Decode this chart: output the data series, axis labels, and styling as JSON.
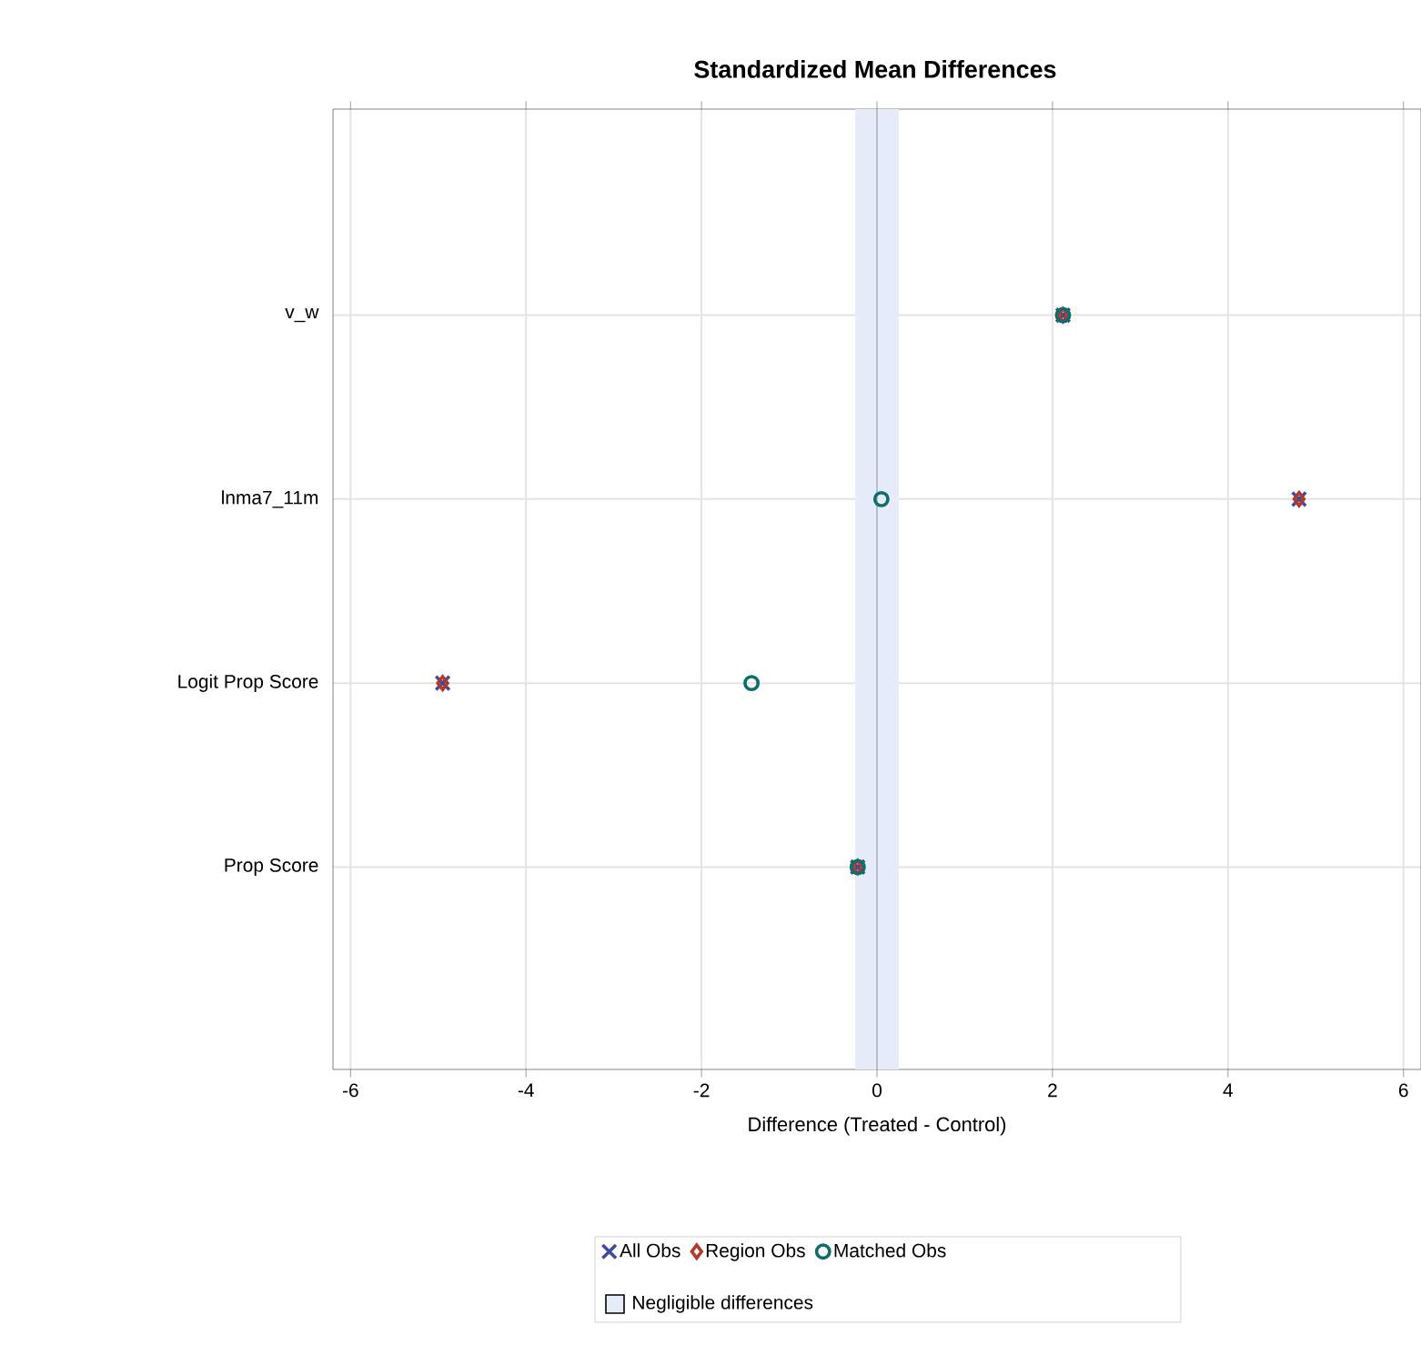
{
  "chart_data": {
    "type": "scatter",
    "orientation": "horizontal",
    "title": "Standardized Mean Differences",
    "xlabel": "Difference (Treated - Control)",
    "categories": [
      "v_w",
      "lnma7_11m",
      "Logit Prop Score",
      "Prop Score"
    ],
    "series": [
      {
        "name": "All Obs",
        "color": "#3f4c9c",
        "marker": "cross",
        "values": [
          2.12,
          4.81,
          -4.95,
          -0.22
        ]
      },
      {
        "name": "Region Obs",
        "color": "#b03a2e",
        "marker": "diamond",
        "values": [
          2.12,
          4.81,
          -4.95,
          -0.22
        ]
      },
      {
        "name": "Matched Obs",
        "color": "#0e6e6a",
        "marker": "circle",
        "values": [
          2.12,
          0.05,
          -1.43,
          -0.22
        ]
      }
    ],
    "xlim": [
      -6.2,
      6.2
    ],
    "xticks": [
      -6,
      -4,
      -2,
      0,
      2,
      4,
      6
    ],
    "bands": [
      {
        "axis": "x",
        "from": -0.25,
        "to": 0.25,
        "label": "Negligible differences",
        "color": "#e6edf8"
      }
    ],
    "ref_lines": [
      {
        "axis": "x",
        "value": 0,
        "color": "#b4bfd0"
      }
    ],
    "grid": true,
    "legend": "bottom"
  }
}
